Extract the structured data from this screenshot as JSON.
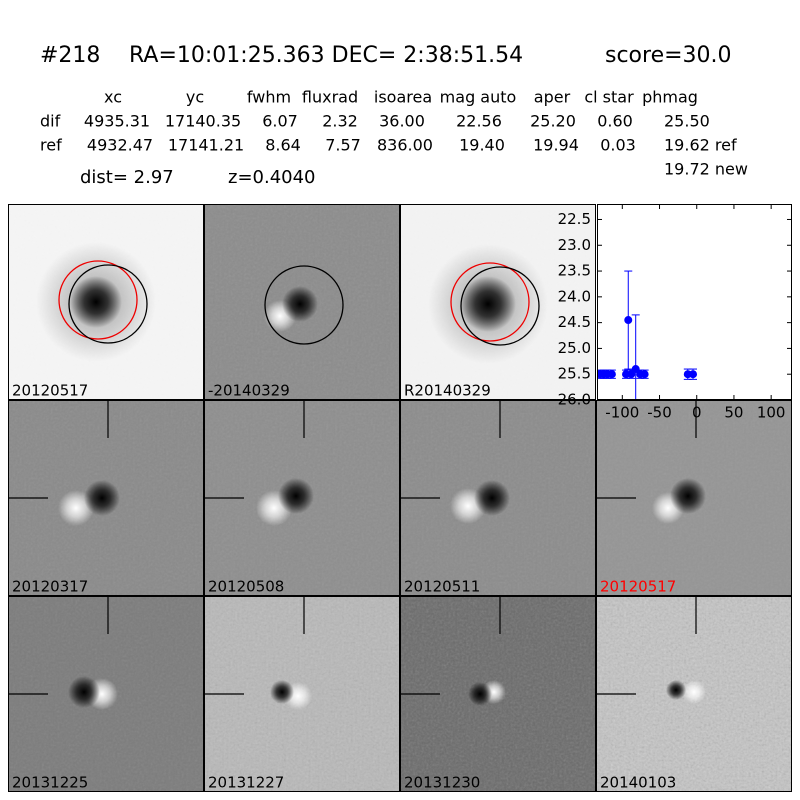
{
  "header": {
    "id": "#218",
    "coords": "RA=10:01:25.363 DEC= 2:38:51.54",
    "score": "score=30.0"
  },
  "table": {
    "columns": [
      "xc",
      "yc",
      "fwhm",
      "fluxrad",
      "isoarea",
      "mag auto",
      "aper",
      "cl star",
      "phmag"
    ],
    "rows": [
      [
        "dif",
        "4935.31",
        "17140.35",
        "6.07",
        "2.32",
        "36.00",
        "22.56",
        "25.20",
        "0.60",
        "25.50"
      ],
      [
        "ref",
        "4932.47",
        "17141.21",
        "8.64",
        "7.57",
        "836.00",
        "19.40",
        "19.94",
        "0.03",
        "19.62 ref"
      ]
    ],
    "extra": "19.72 new",
    "dist": "dist=  2.97",
    "z": "z=0.4040"
  },
  "stamps": [
    {
      "label": "20120517"
    },
    {
      "label": "-20140329"
    },
    {
      "label": "R20140329"
    },
    {
      "label": "20120317"
    },
    {
      "label": "20120508"
    },
    {
      "label": "20120511"
    },
    {
      "label": "20120517",
      "color": "#ff0000"
    },
    {
      "label": "20131225"
    },
    {
      "label": "20131227"
    },
    {
      "label": "20131230"
    },
    {
      "label": "20140103"
    }
  ],
  "chart_data": {
    "type": "scatter",
    "color": "#0000ff",
    "y_inverted": true,
    "x": [
      -130,
      -125,
      -120,
      -114,
      -95,
      -92,
      -88,
      -82,
      -76,
      -70,
      -12,
      -5
    ],
    "values": [
      25.5,
      25.5,
      25.5,
      25.5,
      25.5,
      24.45,
      25.5,
      25.4,
      25.5,
      25.5,
      25.5,
      25.5
    ],
    "errors": [
      0.08,
      0.08,
      0.08,
      0.08,
      0.08,
      0.95,
      0.08,
      1.05,
      0.08,
      0.08,
      0.1,
      0.1
    ],
    "xlim": [
      -134,
      128
    ],
    "xticks": [
      -100,
      -50,
      0,
      50,
      100
    ],
    "ylim": [
      22.2,
      26.0
    ],
    "yticks": [
      22.5,
      {
        "value": 23,
        "label": "23.0"
      },
      23.5,
      {
        "value": 24,
        "label": "24.0"
      },
      24.5,
      {
        "value": 25,
        "label": "25.0"
      },
      25.5,
      {
        "value": 26,
        "label": "26.0"
      }
    ]
  }
}
